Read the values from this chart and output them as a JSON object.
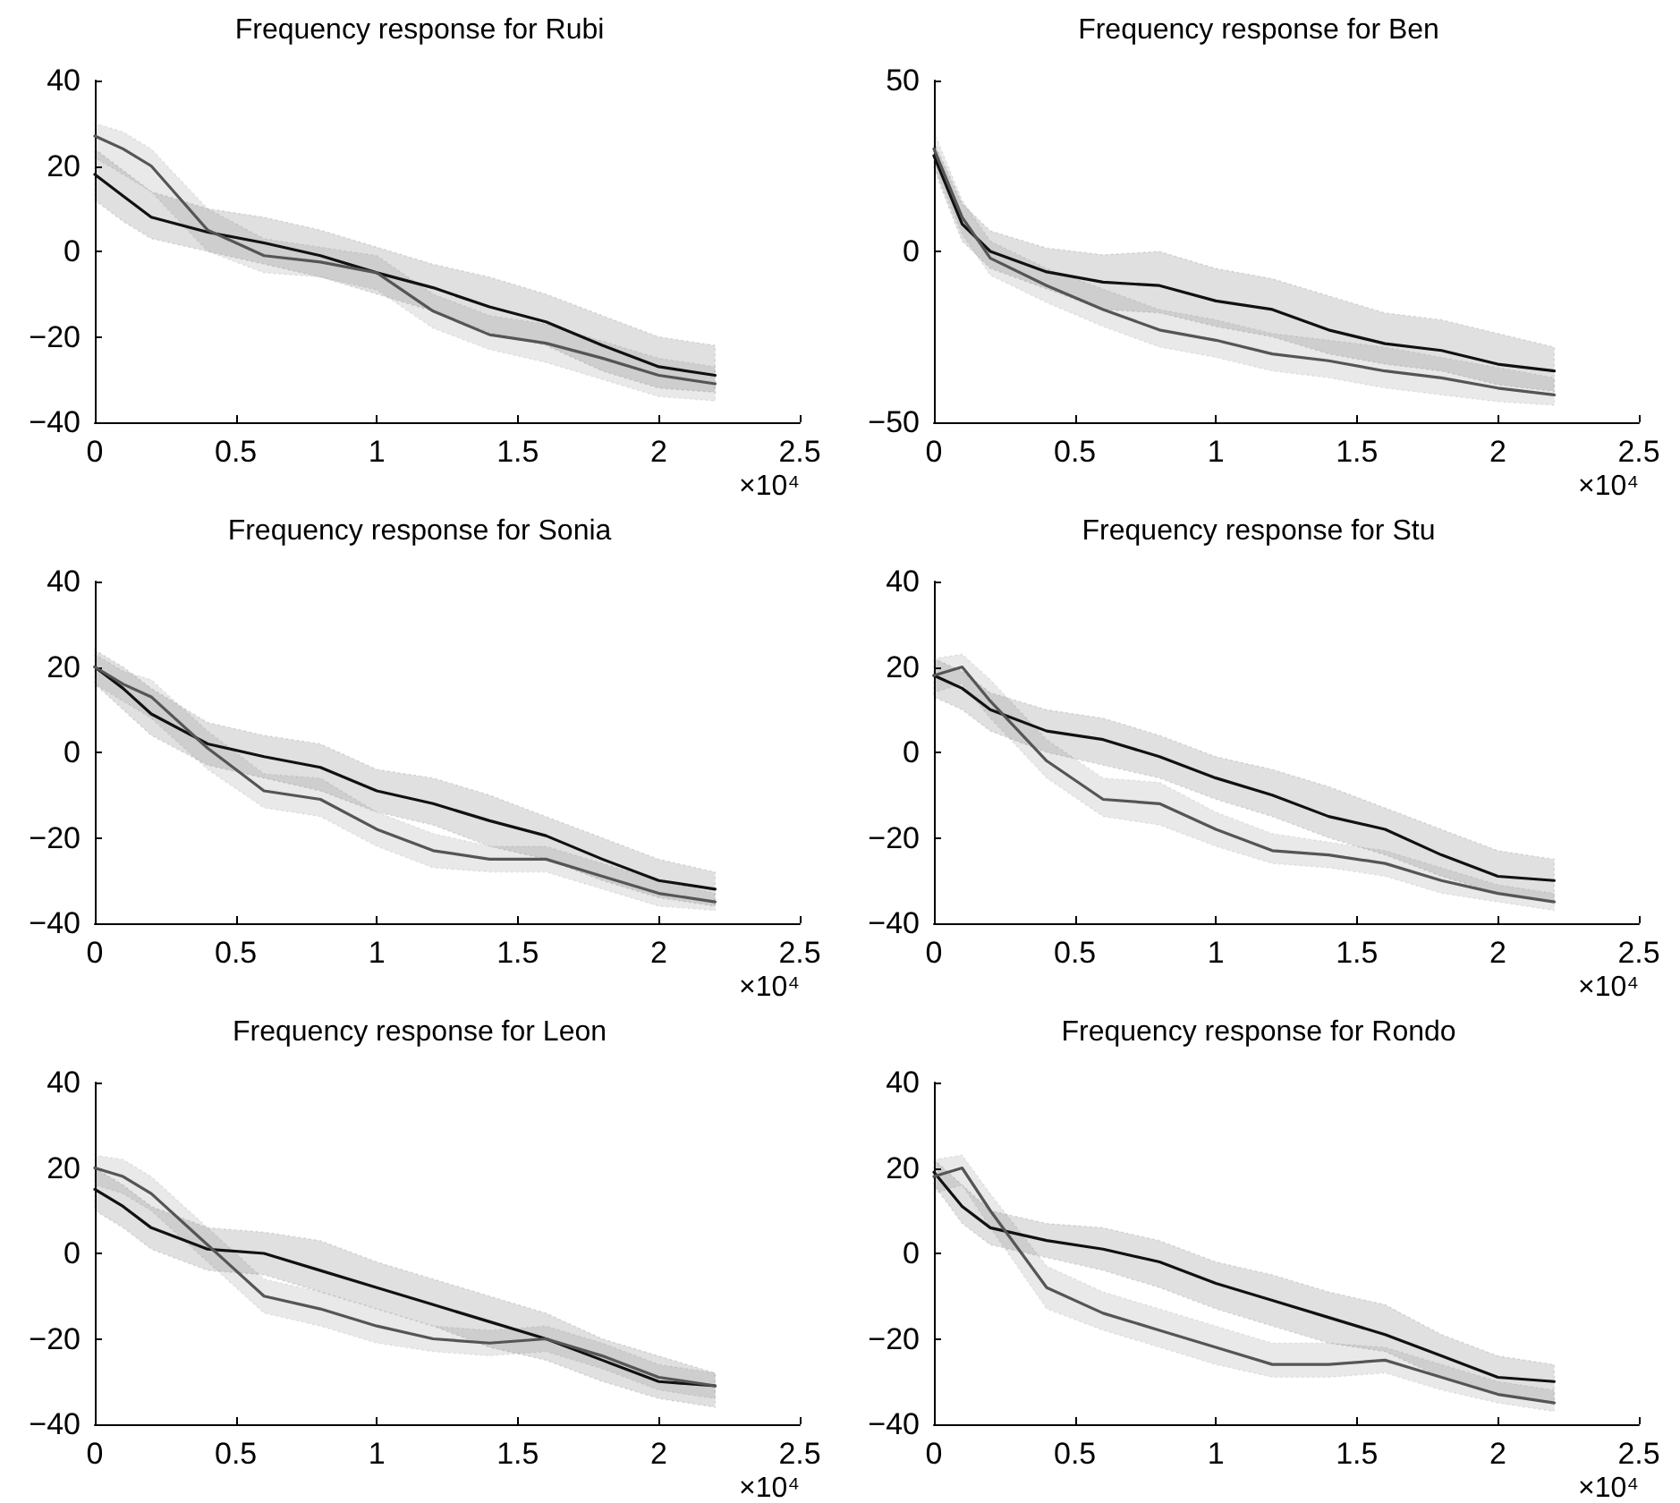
{
  "chart_data": [
    {
      "type": "line",
      "title": "Frequency response for Rubi",
      "xlabel": "×10⁴",
      "x": [
        0,
        0.1,
        0.2,
        0.4,
        0.6,
        0.8,
        1.0,
        1.2,
        1.4,
        1.6,
        1.8,
        2.0,
        2.2
      ],
      "xlim": [
        0,
        2.5
      ],
      "xticks": [
        0,
        0.5,
        1,
        1.5,
        2,
        2.5
      ],
      "ylim": [
        -40,
        40
      ],
      "yticks": [
        -40,
        -20,
        0,
        20,
        40
      ],
      "marker": "none",
      "line_style": "solid",
      "grid": false,
      "series": [
        {
          "color": "#111111",
          "values": [
            18,
            13,
            8,
            4.5,
            2,
            -1,
            -5,
            -8.5,
            -13,
            -16.5,
            -22,
            -27,
            -29
          ],
          "upper": [
            24,
            19,
            14,
            10,
            8,
            5,
            1,
            -3,
            -6,
            -10,
            -15,
            -20,
            -22
          ],
          "lower": [
            12,
            7,
            3,
            0,
            -3,
            -6,
            -10,
            -14,
            -19,
            -22,
            -28,
            -32,
            -33
          ]
        },
        {
          "color": "#555555",
          "values": [
            27,
            24,
            20,
            5,
            -1,
            -2.5,
            -5,
            -14,
            -19.5,
            -21.5,
            -25,
            -29,
            -31
          ],
          "upper": [
            30,
            28,
            24,
            10,
            3,
            1,
            -1,
            -10,
            -15,
            -17,
            -21,
            -25,
            -27
          ],
          "lower": [
            22,
            18,
            14,
            0,
            -5,
            -6,
            -9,
            -18,
            -23,
            -26,
            -30,
            -34,
            -35
          ]
        }
      ]
    },
    {
      "type": "line",
      "title": "Frequency response for Ben",
      "xlabel": "×10⁴",
      "x": [
        0,
        0.1,
        0.2,
        0.4,
        0.6,
        0.8,
        1.0,
        1.2,
        1.4,
        1.6,
        1.8,
        2.0,
        2.2
      ],
      "xlim": [
        0,
        2.5
      ],
      "xticks": [
        0,
        0.5,
        1,
        1.5,
        2,
        2.5
      ],
      "ylim": [
        -50,
        50
      ],
      "yticks": [
        -50,
        0,
        50
      ],
      "marker": "none",
      "line_style": "solid",
      "grid": false,
      "series": [
        {
          "color": "#111111",
          "values": [
            28,
            8,
            0,
            -6,
            -9,
            -10,
            -14.5,
            -17,
            -23,
            -27,
            -29,
            -33,
            -35
          ],
          "upper": [
            32,
            14,
            6,
            1,
            -1,
            0,
            -5,
            -8,
            -13,
            -18,
            -20,
            -24,
            -28
          ],
          "lower": [
            24,
            3,
            -5,
            -11,
            -17,
            -18,
            -22,
            -25,
            -30,
            -33,
            -35,
            -39,
            -41
          ]
        },
        {
          "color": "#555555",
          "values": [
            30,
            10,
            -2,
            -10,
            -17,
            -23,
            -26,
            -30,
            -32,
            -35,
            -37,
            -40,
            -42
          ],
          "upper": [
            35,
            15,
            3,
            -5,
            -11,
            -17,
            -20,
            -24,
            -26,
            -28,
            -31,
            -34,
            -37
          ],
          "lower": [
            25,
            5,
            -7,
            -15,
            -22,
            -28,
            -31,
            -35,
            -37,
            -40,
            -42,
            -44,
            -45
          ]
        }
      ]
    },
    {
      "type": "line",
      "title": "Frequency response for Sonia",
      "xlabel": "×10⁴",
      "x": [
        0,
        0.1,
        0.2,
        0.4,
        0.6,
        0.8,
        1.0,
        1.2,
        1.4,
        1.6,
        1.8,
        2.0,
        2.2
      ],
      "xlim": [
        0,
        2.5
      ],
      "xticks": [
        0,
        0.5,
        1,
        1.5,
        2,
        2.5
      ],
      "ylim": [
        -40,
        40
      ],
      "yticks": [
        -40,
        -20,
        0,
        20,
        40
      ],
      "marker": "none",
      "line_style": "solid",
      "grid": false,
      "series": [
        {
          "color": "#111111",
          "values": [
            20,
            15,
            9,
            2,
            -1,
            -3.5,
            -9,
            -12,
            -16,
            -19.5,
            -25,
            -30,
            -32
          ],
          "upper": [
            24,
            20,
            15,
            7,
            4,
            2,
            -4,
            -6,
            -10,
            -15,
            -20,
            -25,
            -28
          ],
          "lower": [
            16,
            10,
            4,
            -3,
            -6,
            -9,
            -14,
            -17,
            -22,
            -25,
            -30,
            -34,
            -36
          ]
        },
        {
          "color": "#555555",
          "values": [
            20,
            16,
            13,
            1,
            -9,
            -11,
            -18,
            -23,
            -25,
            -25,
            -29,
            -33,
            -35
          ],
          "upper": [
            23,
            19,
            17,
            5,
            -5,
            -6,
            -14,
            -19,
            -22,
            -22,
            -26,
            -30,
            -33
          ],
          "lower": [
            16,
            12,
            8,
            -4,
            -13,
            -15,
            -22,
            -27,
            -28,
            -28,
            -32,
            -36,
            -37
          ]
        }
      ]
    },
    {
      "type": "line",
      "title": "Frequency response for Stu",
      "xlabel": "×10⁴",
      "x": [
        0,
        0.1,
        0.2,
        0.4,
        0.6,
        0.8,
        1.0,
        1.2,
        1.4,
        1.6,
        1.8,
        2.0,
        2.2
      ],
      "xlim": [
        0,
        2.5
      ],
      "xticks": [
        0,
        0.5,
        1,
        1.5,
        2,
        2.5
      ],
      "ylim": [
        -40,
        40
      ],
      "yticks": [
        -40,
        -20,
        0,
        20,
        40
      ],
      "marker": "none",
      "line_style": "solid",
      "grid": false,
      "series": [
        {
          "color": "#111111",
          "values": [
            18,
            15,
            10,
            5,
            3,
            -1,
            -6,
            -10,
            -15,
            -18,
            -24,
            -29,
            -30
          ],
          "upper": [
            22,
            19,
            14,
            10,
            8,
            4,
            -1,
            -4,
            -8,
            -13,
            -18,
            -23,
            -25
          ],
          "lower": [
            13,
            10,
            5,
            0,
            -3,
            -6,
            -11,
            -15,
            -20,
            -24,
            -29,
            -33,
            -35
          ]
        },
        {
          "color": "#555555",
          "values": [
            18,
            20,
            12,
            -2,
            -11,
            -12,
            -18,
            -23,
            -24,
            -26,
            -30,
            -33,
            -35
          ],
          "upper": [
            22,
            23,
            17,
            3,
            -6,
            -7,
            -14,
            -19,
            -21,
            -23,
            -27,
            -31,
            -33
          ],
          "lower": [
            14,
            16,
            8,
            -6,
            -15,
            -17,
            -22,
            -26,
            -27,
            -29,
            -33,
            -35,
            -37
          ]
        }
      ]
    },
    {
      "type": "line",
      "title": "Frequency response for Leon",
      "xlabel": "×10⁴",
      "x": [
        0,
        0.1,
        0.2,
        0.4,
        0.6,
        0.8,
        1.0,
        1.2,
        1.4,
        1.6,
        1.8,
        2.0,
        2.2
      ],
      "xlim": [
        0,
        2.5
      ],
      "xticks": [
        0,
        0.5,
        1,
        1.5,
        2,
        2.5
      ],
      "ylim": [
        -40,
        40
      ],
      "yticks": [
        -40,
        -20,
        0,
        20,
        40
      ],
      "marker": "none",
      "line_style": "solid",
      "grid": false,
      "series": [
        {
          "color": "#111111",
          "values": [
            15,
            11,
            6,
            1,
            0,
            -4,
            -8,
            -12,
            -16,
            -20,
            -25,
            -30,
            -31
          ],
          "upper": [
            20,
            16,
            11,
            6,
            5,
            3,
            -2,
            -6,
            -10,
            -14,
            -20,
            -24,
            -28
          ],
          "lower": [
            10,
            6,
            1,
            -4,
            -5,
            -9,
            -13,
            -17,
            -22,
            -25,
            -30,
            -34,
            -36
          ]
        },
        {
          "color": "#555555",
          "values": [
            20,
            18,
            14,
            2,
            -10,
            -13,
            -17,
            -20,
            -21,
            -20,
            -24,
            -29,
            -31
          ],
          "upper": [
            23,
            22,
            18,
            6,
            -6,
            -9,
            -13,
            -17,
            -18,
            -17,
            -21,
            -26,
            -28
          ],
          "lower": [
            16,
            14,
            10,
            -2,
            -14,
            -17,
            -21,
            -23,
            -24,
            -23,
            -27,
            -32,
            -34
          ]
        }
      ]
    },
    {
      "type": "line",
      "title": "Frequency response for Rondo",
      "xlabel": "×10⁴",
      "x": [
        0,
        0.1,
        0.2,
        0.4,
        0.6,
        0.8,
        1.0,
        1.2,
        1.4,
        1.6,
        1.8,
        2.0,
        2.2
      ],
      "xlim": [
        0,
        2.5
      ],
      "xticks": [
        0,
        0.5,
        1,
        1.5,
        2,
        2.5
      ],
      "ylim": [
        -40,
        40
      ],
      "yticks": [
        -40,
        -20,
        0,
        20,
        40
      ],
      "marker": "none",
      "line_style": "solid",
      "grid": false,
      "series": [
        {
          "color": "#111111",
          "values": [
            19,
            11,
            6,
            3,
            1,
            -2,
            -7,
            -11,
            -15,
            -19,
            -24,
            -29,
            -30
          ],
          "upper": [
            22,
            16,
            10,
            7,
            6,
            3,
            -2,
            -5,
            -9,
            -12,
            -19,
            -24,
            -26
          ],
          "lower": [
            16,
            7,
            2,
            -1,
            -4,
            -8,
            -13,
            -17,
            -21,
            -23,
            -29,
            -33,
            -35
          ]
        },
        {
          "color": "#555555",
          "values": [
            18,
            20,
            10,
            -8,
            -14,
            -18,
            -22,
            -26,
            -26,
            -25,
            -29,
            -33,
            -35
          ],
          "upper": [
            22,
            23,
            14,
            -3,
            -9,
            -13,
            -17,
            -21,
            -21,
            -22,
            -26,
            -30,
            -32
          ],
          "lower": [
            14,
            16,
            6,
            -13,
            -18,
            -22,
            -26,
            -29,
            -29,
            -28,
            -32,
            -35,
            -37
          ]
        }
      ]
    }
  ]
}
